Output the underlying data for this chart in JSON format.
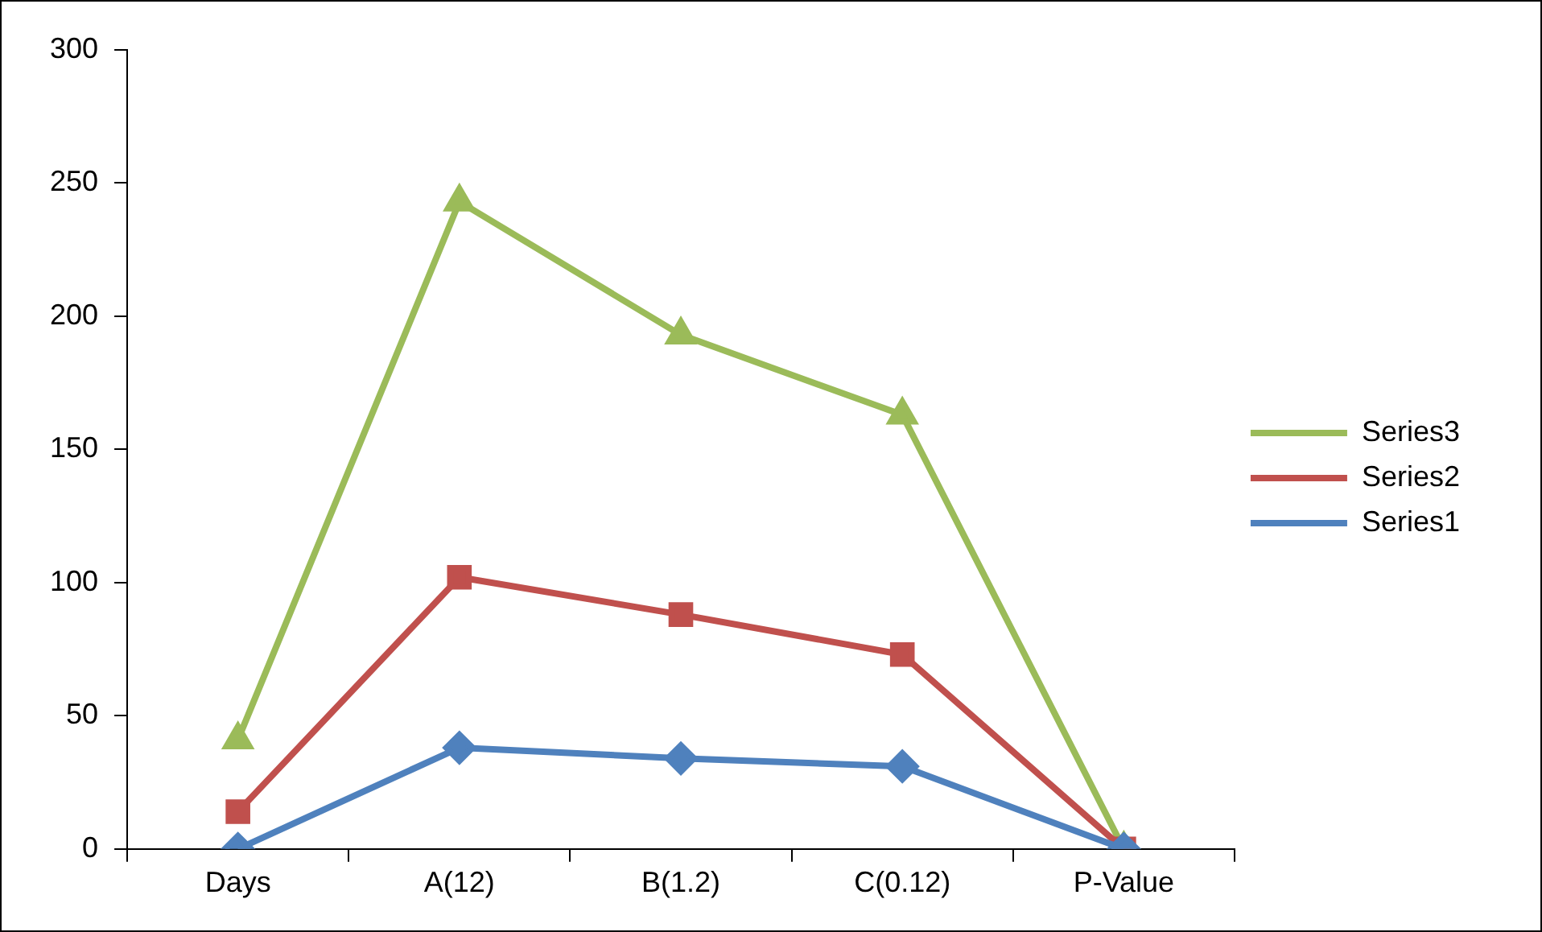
{
  "chart_data": {
    "type": "line",
    "categories": [
      "Days",
      "A(12)",
      "B(1.2)",
      "C(0.12)",
      "P-Value"
    ],
    "series": [
      {
        "name": "Series1",
        "color": "#4f81bd",
        "marker": "diamond",
        "values": [
          0,
          38,
          34,
          31,
          0
        ]
      },
      {
        "name": "Series2",
        "color": "#c0504d",
        "marker": "square",
        "values": [
          14,
          102,
          88,
          73,
          0
        ]
      },
      {
        "name": "Series3",
        "color": "#9bbb59",
        "marker": "triangle",
        "values": [
          41,
          243,
          193,
          163,
          0
        ]
      }
    ],
    "ylim": [
      0,
      300
    ],
    "yticks": [
      0,
      50,
      100,
      150,
      200,
      250,
      300
    ],
    "grid": false,
    "legend": "right"
  }
}
